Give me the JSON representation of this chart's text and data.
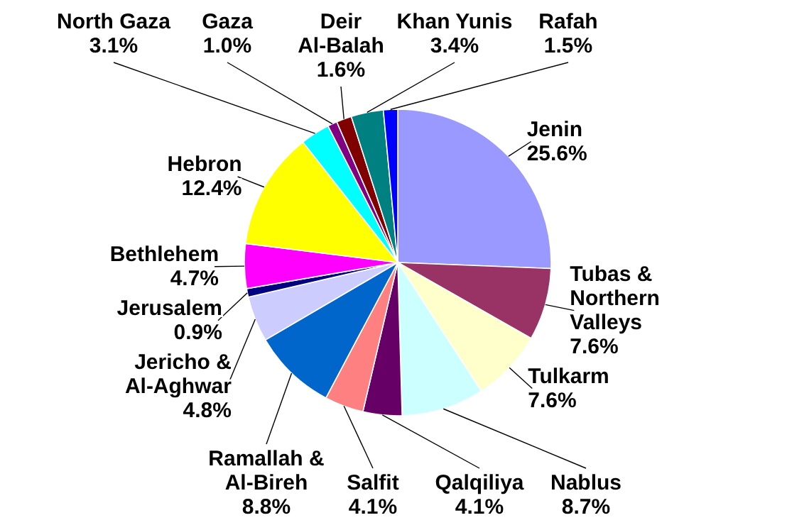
{
  "chart_data": {
    "type": "pie",
    "categories": [
      "Jenin",
      "Tubas & Northern Valleys",
      "Tulkarm",
      "Nablus",
      "Qalqiliya",
      "Salfit",
      "Ramallah & Al-Bireh",
      "Jericho & Al-Aghwar",
      "Jerusalem",
      "Bethlehem",
      "Hebron",
      "North Gaza",
      "Gaza",
      "Deir Al-Balah",
      "Khan Yunis",
      "Rafah"
    ],
    "values": [
      25.6,
      7.6,
      7.6,
      8.7,
      4.1,
      4.1,
      8.8,
      4.8,
      0.9,
      4.7,
      12.4,
      3.1,
      1.0,
      1.6,
      3.4,
      1.5
    ],
    "value_labels": [
      "25.6%",
      "7.6%",
      "7.6%",
      "8.7%",
      "4.1%",
      "4.1%",
      "8.8%",
      "4.8%",
      "0.9%",
      "4.7%",
      "12.4%",
      "3.1%",
      "1.0%",
      "1.6%",
      "3.4%",
      "1.5%"
    ],
    "colors": [
      "#9999ff",
      "#993366",
      "#ffffcc",
      "#ccffff",
      "#660066",
      "#ff8080",
      "#0066cc",
      "#ccccff",
      "#000080",
      "#ff00ff",
      "#ffff00",
      "#00ffff",
      "#800080",
      "#800000",
      "#008080",
      "#0000ff"
    ]
  }
}
